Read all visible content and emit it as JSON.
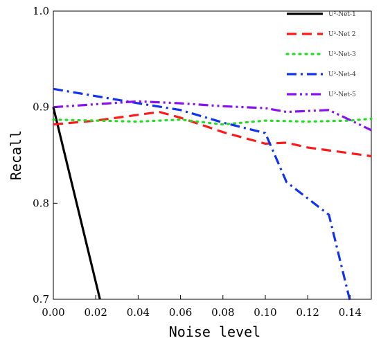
{
  "chart_data": {
    "type": "line",
    "title": "",
    "xlabel": "Noise level",
    "ylabel": "Recall",
    "xlim": [
      0,
      0.15
    ],
    "ylim": [
      0.7,
      1.0
    ],
    "xticks": [
      "0.00",
      "0.02",
      "0.04",
      "0.06",
      "0.08",
      "0.10",
      "0.12",
      "0.14"
    ],
    "xtick_values": [
      0,
      0.02,
      0.04,
      0.06,
      0.08,
      0.1,
      0.12,
      0.14
    ],
    "yticks": [
      "0.7",
      "0.8",
      "0.9",
      "1.0"
    ],
    "ytick_values": [
      0.7,
      0.8,
      0.9,
      1.0
    ],
    "grid": false,
    "legend_position": "top-right",
    "series": [
      {
        "name": "U²-Net-1",
        "color": "#000000",
        "dash": "solid",
        "x": [
          0,
          0.022
        ],
        "y": [
          0.9,
          0.7
        ]
      },
      {
        "name": "U²-Net 2",
        "color": "#ff1a1a",
        "dash": "dash",
        "x": [
          0,
          0.02,
          0.05,
          0.06,
          0.08,
          0.1,
          0.11,
          0.12,
          0.15
        ],
        "y": [
          0.882,
          0.886,
          0.895,
          0.889,
          0.874,
          0.862,
          0.863,
          0.858,
          0.849
        ]
      },
      {
        "name": "U²-Net-3",
        "color": "#22dd22",
        "dash": "dot",
        "x": [
          0,
          0.04,
          0.06,
          0.08,
          0.1,
          0.12,
          0.14,
          0.15
        ],
        "y": [
          0.887,
          0.885,
          0.887,
          0.882,
          0.886,
          0.885,
          0.886,
          0.888
        ]
      },
      {
        "name": "U²-Net-4",
        "color": "#1133ee",
        "dash": "dashdot",
        "x": [
          0,
          0.04,
          0.06,
          0.08,
          0.1,
          0.11,
          0.12,
          0.13,
          0.14
        ],
        "y": [
          0.919,
          0.904,
          0.897,
          0.884,
          0.873,
          0.822,
          0.805,
          0.788,
          0.698
        ]
      },
      {
        "name": "U²-Net-5",
        "color": "#8811ee",
        "dash": "dashdotdot",
        "x": [
          0,
          0.04,
          0.06,
          0.08,
          0.1,
          0.11,
          0.12,
          0.13,
          0.15
        ],
        "y": [
          0.9,
          0.906,
          0.904,
          0.901,
          0.899,
          0.895,
          0.896,
          0.897,
          0.876
        ]
      }
    ]
  }
}
